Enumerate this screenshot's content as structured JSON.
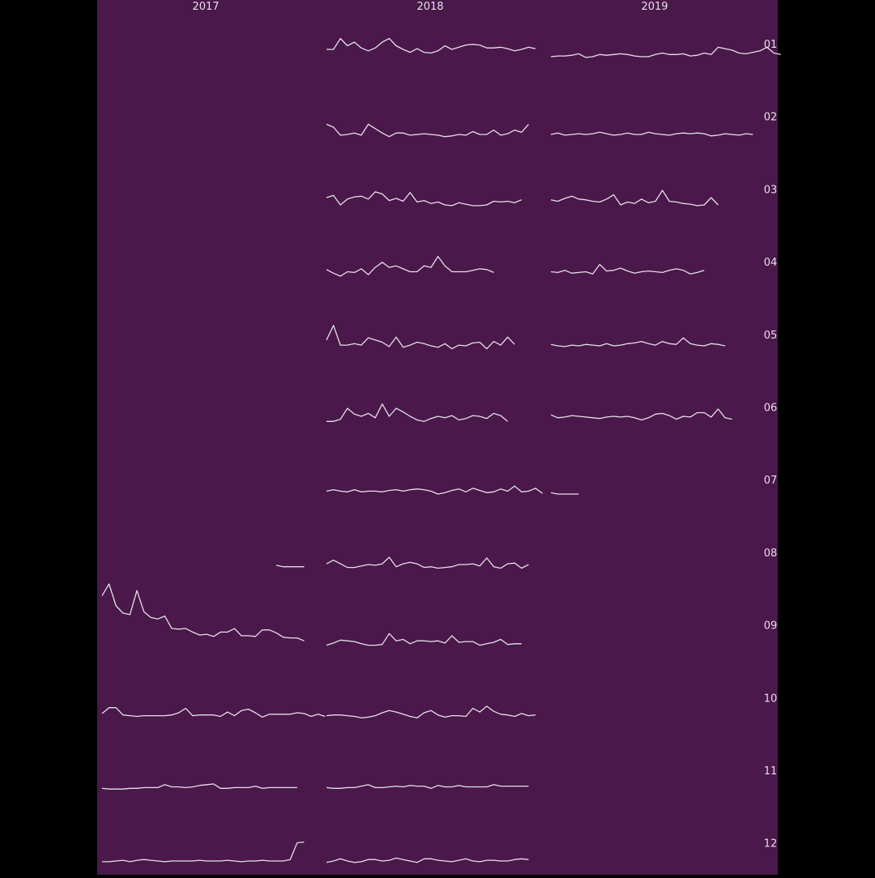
{
  "colors": {
    "page_background": "#000000",
    "panel_background": "#4a184a",
    "line": "#e6e0e6",
    "text": "#e6e0e6"
  },
  "chart_data": {
    "type": "line",
    "layout": "small-multiples grid (columns = years, rows = months)",
    "title": "",
    "xlabel": "",
    "ylabel": "",
    "grid": false,
    "legend": "none",
    "x_unit": "day of month",
    "ylim": [
      0,
      10
    ],
    "columns": [
      "2017",
      "2018",
      "2019"
    ],
    "rows": [
      "01",
      "02",
      "03",
      "04",
      "05",
      "06",
      "07",
      "08",
      "09",
      "10",
      "11",
      "12"
    ],
    "series": [
      {
        "year": "2018",
        "month": "01",
        "start_day": 1,
        "values": [
          3,
          3,
          4.5,
          3.5,
          4,
          3.2,
          2.8,
          3.2,
          4,
          4.5,
          3.5,
          3,
          2.6,
          3.1,
          2.6,
          2.5,
          2.8,
          3.5,
          3,
          3.3,
          3.6,
          3.7,
          3.6,
          3.2,
          3.2,
          3.3,
          3.1,
          2.8,
          3,
          3.3,
          3.1
        ]
      },
      {
        "year": "2019",
        "month": "01",
        "start_day": 1,
        "values": [
          2,
          2.1,
          2.1,
          2.2,
          2.4,
          1.9,
          2,
          2.3,
          2.2,
          2.3,
          2.4,
          2.3,
          2.1,
          2,
          2,
          2.3,
          2.5,
          2.3,
          2.3,
          2.4,
          2.1,
          2.2,
          2.5,
          2.3,
          3.3,
          3.1,
          2.9,
          2.5,
          2.4,
          2.6,
          2.8,
          3.3,
          2.5,
          2.3
        ]
      },
      {
        "year": "2018",
        "month": "02",
        "start_day": 1,
        "values": [
          2.7,
          2.3,
          1.2,
          1.3,
          1.5,
          1.2,
          2.7,
          2.1,
          1.5,
          1,
          1.5,
          1.5,
          1.2,
          1.3,
          1.4,
          1.3,
          1.2,
          1,
          1.1,
          1.3,
          1.2,
          1.7,
          1.3,
          1.3,
          1.9,
          1.2,
          1.4,
          1.9,
          1.6,
          2.7
        ]
      },
      {
        "year": "2019",
        "month": "02",
        "start_day": 1,
        "values": [
          1.3,
          1.5,
          1.2,
          1.3,
          1.4,
          1.3,
          1.4,
          1.6,
          1.4,
          1.2,
          1.3,
          1.5,
          1.3,
          1.3,
          1.6,
          1.4,
          1.3,
          1.2,
          1.4,
          1.5,
          1.4,
          1.5,
          1.4,
          1.1,
          1.2,
          1.4,
          1.3,
          1.2,
          1.4,
          1.3
        ]
      },
      {
        "year": "2018",
        "month": "03",
        "start_day": 1,
        "values": [
          2.6,
          2.9,
          1.6,
          2.4,
          2.7,
          2.8,
          2.4,
          3.4,
          3.1,
          2.2,
          2.5,
          2.1,
          3.3,
          2,
          2.2,
          1.8,
          2,
          1.6,
          1.5,
          1.9,
          1.7,
          1.5,
          1.5,
          1.6,
          2.1,
          2,
          2.1,
          1.9,
          2.3
        ]
      },
      {
        "year": "2019",
        "month": "03",
        "start_day": 1,
        "values": [
          2.3,
          2.1,
          2.5,
          2.8,
          2.4,
          2.3,
          2.1,
          2,
          2.4,
          3,
          1.6,
          2,
          1.8,
          2.4,
          1.9,
          2.1,
          3.6,
          2.1,
          2,
          1.8,
          1.7,
          1.5,
          1.6,
          2.6,
          1.6
        ]
      },
      {
        "year": "2018",
        "month": "04",
        "start_day": 1,
        "values": [
          2.7,
          2.2,
          1.8,
          2.4,
          2.3,
          2.8,
          2,
          3,
          3.7,
          3,
          3.2,
          2.8,
          2.4,
          2.4,
          3.2,
          3,
          4.5,
          3.2,
          2.4,
          2.4,
          2.4,
          2.6,
          2.8,
          2.7,
          2.3
        ]
      },
      {
        "year": "2019",
        "month": "04",
        "start_day": 1,
        "values": [
          2.4,
          2.3,
          2.6,
          2.2,
          2.3,
          2.4,
          2.1,
          3.4,
          2.5,
          2.6,
          2.9,
          2.5,
          2.2,
          2.4,
          2.5,
          2.4,
          2.3,
          2.6,
          2.8,
          2.6,
          2.1,
          2.3,
          2.6
        ]
      },
      {
        "year": "2018",
        "month": "05",
        "start_day": 1,
        "values": [
          3,
          5,
          2.3,
          2.3,
          2.5,
          2.3,
          3.3,
          3,
          2.7,
          2.1,
          3.4,
          2,
          2.3,
          2.7,
          2.5,
          2.2,
          2,
          2.5,
          1.8,
          2.3,
          2.2,
          2.6,
          2.7,
          1.8,
          2.8,
          2.3,
          3.4,
          2.4
        ]
      },
      {
        "year": "2019",
        "month": "05",
        "start_day": 1,
        "values": [
          2.4,
          2.2,
          2.1,
          2.3,
          2.2,
          2.4,
          2.3,
          2.2,
          2.5,
          2.2,
          2.3,
          2.5,
          2.6,
          2.8,
          2.5,
          2.3,
          2.8,
          2.5,
          2.4,
          3.3,
          2.5,
          2.3,
          2.2,
          2.5,
          2.4,
          2.2
        ]
      },
      {
        "year": "2018",
        "month": "06",
        "start_day": 1,
        "values": [
          1.8,
          1.8,
          2.1,
          3.6,
          2.8,
          2.5,
          2.9,
          2.3,
          4.2,
          2.5,
          3.6,
          3.1,
          2.5,
          2,
          1.8,
          2.2,
          2.5,
          2.3,
          2.6,
          2,
          2.2,
          2.6,
          2.5,
          2.2,
          2.9,
          2.6,
          1.8
        ]
      },
      {
        "year": "2019",
        "month": "06",
        "start_day": 1,
        "values": [
          2.7,
          2.3,
          2.4,
          2.6,
          2.5,
          2.4,
          2.3,
          2.2,
          2.4,
          2.5,
          2.4,
          2.5,
          2.3,
          2,
          2.3,
          2.8,
          2.9,
          2.6,
          2.1,
          2.5,
          2.4,
          3,
          3,
          2.4,
          3.5,
          2.3,
          2.1
        ]
      },
      {
        "year": "2018",
        "month": "07",
        "start_day": 1,
        "values": [
          2.2,
          2.4,
          2.2,
          2.1,
          2.4,
          2.1,
          2.2,
          2.2,
          2.1,
          2.3,
          2.4,
          2.2,
          2.4,
          2.5,
          2.4,
          2.2,
          1.8,
          2,
          2.3,
          2.5,
          2.1,
          2.6,
          2.3,
          2,
          2.1,
          2.5,
          2.2,
          2.9,
          2.1,
          2.2,
          2.6,
          1.9
        ]
      },
      {
        "year": "2019",
        "month": "07",
        "start_day": 1,
        "values": [
          2,
          1.8,
          1.8,
          1.8,
          1.8
        ]
      },
      {
        "year": "2017",
        "month": "08",
        "start_day": 26,
        "values": [
          2,
          1.8,
          1.8,
          1.8,
          1.8
        ]
      },
      {
        "year": "2018",
        "month": "08",
        "start_day": 1,
        "values": [
          2.2,
          2.7,
          2.2,
          1.7,
          1.7,
          1.9,
          2.1,
          2,
          2.2,
          3.1,
          1.8,
          2.2,
          2.4,
          2.2,
          1.7,
          1.8,
          1.6,
          1.7,
          1.8,
          2.1,
          2.1,
          2.2,
          1.9,
          3,
          1.8,
          1.6,
          2.2,
          2.3,
          1.6,
          2.1
        ]
      },
      {
        "year": "2017",
        "month": "09",
        "start_day": 1,
        "values": [
          7.8,
          9.4,
          6.4,
          5.4,
          5.2,
          8.5,
          5.6,
          4.8,
          4.6,
          5,
          3.3,
          3.2,
          3.3,
          2.8,
          2.4,
          2.5,
          2.2,
          2.8,
          2.8,
          3.3,
          2.3,
          2.3,
          2.2,
          3.1,
          3.1,
          2.7,
          2.1,
          2,
          2,
          1.6
        ]
      },
      {
        "year": "2018",
        "month": "09",
        "start_day": 1,
        "values": [
          1,
          1.3,
          1.7,
          1.6,
          1.5,
          1.2,
          1,
          1,
          1.1,
          2.6,
          1.6,
          1.8,
          1.2,
          1.6,
          1.6,
          1.5,
          1.6,
          1.3,
          2.3,
          1.4,
          1.5,
          1.5,
          1,
          1.2,
          1.4,
          1.8,
          1.1,
          1.2,
          1.2
        ]
      },
      {
        "year": "2017",
        "month": "10",
        "start_day": 1,
        "values": [
          1.6,
          2.4,
          2.4,
          1.4,
          1.3,
          1.2,
          1.3,
          1.3,
          1.3,
          1.3,
          1.4,
          1.7,
          2.3,
          1.3,
          1.4,
          1.4,
          1.4,
          1.2,
          1.8,
          1.3,
          2,
          2.2,
          1.7,
          1.1,
          1.5,
          1.5,
          1.5,
          1.5,
          1.7,
          1.6,
          1.2,
          1.5,
          1.2
        ]
      },
      {
        "year": "2018",
        "month": "10",
        "start_day": 1,
        "values": [
          1.3,
          1.4,
          1.4,
          1.3,
          1.2,
          1,
          1.1,
          1.3,
          1.7,
          2,
          1.8,
          1.5,
          1.2,
          1,
          1.7,
          2,
          1.4,
          1.1,
          1.3,
          1.3,
          1.2,
          2.3,
          1.8,
          2.6,
          1.9,
          1.5,
          1.4,
          1.2,
          1.6,
          1.3,
          1.4
        ]
      },
      {
        "year": "2017",
        "month": "11",
        "start_day": 1,
        "values": [
          1.3,
          1.2,
          1.2,
          1.2,
          1.3,
          1.3,
          1.4,
          1.4,
          1.4,
          1.8,
          1.5,
          1.5,
          1.4,
          1.5,
          1.7,
          1.8,
          1.9,
          1.3,
          1.3,
          1.4,
          1.4,
          1.4,
          1.6,
          1.3,
          1.4,
          1.4,
          1.4,
          1.4,
          1.4
        ]
      },
      {
        "year": "2018",
        "month": "11",
        "start_day": 1,
        "values": [
          1.4,
          1.3,
          1.3,
          1.4,
          1.4,
          1.6,
          1.8,
          1.4,
          1.4,
          1.5,
          1.6,
          1.5,
          1.7,
          1.6,
          1.6,
          1.3,
          1.7,
          1.5,
          1.5,
          1.7,
          1.5,
          1.5,
          1.5,
          1.5,
          1.8,
          1.6,
          1.6,
          1.6,
          1.6,
          1.6
        ]
      },
      {
        "year": "2017",
        "month": "12",
        "start_day": 1,
        "values": [
          1.2,
          1.2,
          1.3,
          1.4,
          1.2,
          1.4,
          1.5,
          1.4,
          1.3,
          1.2,
          1.3,
          1.3,
          1.3,
          1.3,
          1.4,
          1.3,
          1.3,
          1.3,
          1.4,
          1.3,
          1.2,
          1.3,
          1.3,
          1.4,
          1.3,
          1.3,
          1.3,
          1.5,
          3.8,
          3.9
        ]
      },
      {
        "year": "2018",
        "month": "12",
        "start_day": 1,
        "values": [
          1.1,
          1.3,
          1.6,
          1.3,
          1.1,
          1.2,
          1.5,
          1.5,
          1.3,
          1.4,
          1.7,
          1.5,
          1.3,
          1.1,
          1.6,
          1.6,
          1.4,
          1.3,
          1.2,
          1.4,
          1.6,
          1.3,
          1.2,
          1.4,
          1.4,
          1.3,
          1.3,
          1.5,
          1.6,
          1.5
        ]
      }
    ]
  }
}
